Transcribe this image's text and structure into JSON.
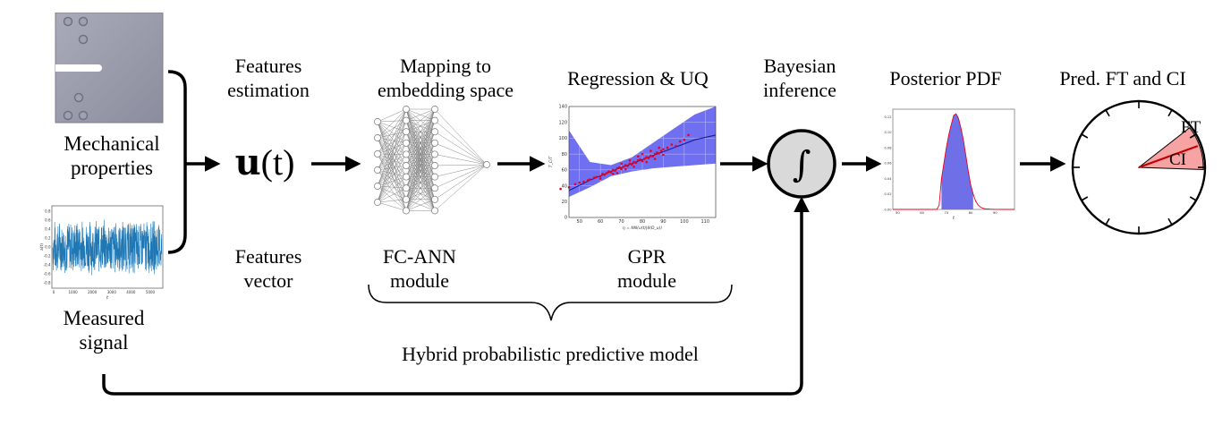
{
  "inputs": {
    "mech_label_1": "Mechanical",
    "mech_label_2": "properties",
    "signal_label_1": "Measured",
    "signal_label_2": "signal",
    "signal_ylabel": "a(t)",
    "signal_xlabel": "t",
    "signal_yticks": [
      "0.8",
      "0.6",
      "0.4",
      "0.2",
      "0.0",
      "-0.2",
      "-0.4",
      "-0.6",
      "-0.8"
    ],
    "signal_xticks": [
      "0",
      "1000",
      "2000",
      "3000",
      "4000",
      "5000"
    ]
  },
  "features": {
    "title_1": "Features",
    "title_2": "estimation",
    "vector_symbol": "u",
    "vector_arg": "(t)",
    "bottom_1": "Features",
    "bottom_2": "vector"
  },
  "ann": {
    "title_1": "Mapping to",
    "title_2": "embedding space",
    "bottom_1": "FC-ANN",
    "bottom_2": "module"
  },
  "gpr": {
    "title": "Regression & UQ",
    "bottom_1": "GPR",
    "bottom_2": "module",
    "ylabel": "T_C/T",
    "xlabel": "η = NN(u(t)|θ(D_u))",
    "chart_data": {
      "type": "scatter",
      "x_ticks": [
        50,
        60,
        70,
        80,
        90,
        100,
        110
      ],
      "y_ticks": [
        0,
        20,
        40,
        60,
        80,
        100,
        120,
        140
      ],
      "xlim": [
        45,
        115
      ],
      "ylim": [
        0,
        140
      ],
      "mean_line": {
        "x": [
          45,
          55,
          65,
          75,
          85,
          95,
          105,
          115
        ],
        "y": [
          34,
          47,
          58,
          68,
          78,
          88,
          98,
          104
        ]
      },
      "band_upper": {
        "x": [
          45,
          55,
          65,
          75,
          85,
          95,
          105,
          115
        ],
        "y": [
          110,
          70,
          66,
          76,
          94,
          112,
          130,
          140
        ]
      },
      "band_lower": {
        "x": [
          45,
          55,
          65,
          75,
          85,
          95,
          105,
          115
        ],
        "y": [
          26,
          38,
          52,
          58,
          62,
          64,
          66,
          68
        ]
      },
      "points": [
        [
          41,
          36
        ],
        [
          45,
          38
        ],
        [
          48,
          42
        ],
        [
          50,
          44
        ],
        [
          52,
          45
        ],
        [
          54,
          47
        ],
        [
          55,
          48
        ],
        [
          57,
          50
        ],
        [
          58,
          51
        ],
        [
          60,
          52
        ],
        [
          61,
          55
        ],
        [
          62,
          54
        ],
        [
          63,
          56
        ],
        [
          64,
          58
        ],
        [
          65,
          57
        ],
        [
          66,
          60
        ],
        [
          67,
          59
        ],
        [
          68,
          62
        ],
        [
          69,
          63
        ],
        [
          70,
          61
        ],
        [
          71,
          64
        ],
        [
          72,
          66
        ],
        [
          73,
          65
        ],
        [
          74,
          68
        ],
        [
          75,
          67
        ],
        [
          76,
          70
        ],
        [
          77,
          69
        ],
        [
          78,
          72
        ],
        [
          79,
          73
        ],
        [
          80,
          71
        ],
        [
          81,
          74
        ],
        [
          82,
          76
        ],
        [
          83,
          75
        ],
        [
          84,
          78
        ],
        [
          85,
          77
        ],
        [
          86,
          80
        ],
        [
          87,
          82
        ],
        [
          88,
          81
        ],
        [
          89,
          84
        ],
        [
          90,
          86
        ],
        [
          92,
          88
        ],
        [
          94,
          92
        ],
        [
          96,
          90
        ],
        [
          98,
          96
        ],
        [
          100,
          98
        ],
        [
          102,
          104
        ],
        [
          60,
          49
        ],
        [
          66,
          55
        ],
        [
          72,
          61
        ],
        [
          78,
          77
        ],
        [
          84,
          84
        ],
        [
          90,
          79
        ],
        [
          70,
          68
        ],
        [
          76,
          64
        ],
        [
          82,
          70
        ],
        [
          86,
          74
        ],
        [
          88,
          88
        ],
        [
          74,
          72
        ],
        [
          80,
          80
        ],
        [
          68,
          56
        ]
      ],
      "grid": true
    }
  },
  "bayes": {
    "title_1": "Bayesian",
    "title_2": "inference",
    "symbol": "∫"
  },
  "posterior": {
    "title": "Posterior PDF",
    "xlabel": "t",
    "chart_data": {
      "type": "area",
      "x_ticks": [
        50,
        60,
        70,
        80,
        90
      ],
      "y_ticks": [
        "0.00",
        "0.02",
        "0.04",
        "0.06",
        "0.08",
        "0.10",
        "0.12"
      ],
      "xlim": [
        48,
        98
      ],
      "ylim": [
        0,
        0.13
      ],
      "curve": {
        "x": [
          66,
          67,
          68,
          69,
          70,
          71,
          72,
          73,
          74,
          75,
          76,
          77,
          78,
          79,
          80,
          81,
          82,
          83,
          84,
          85,
          86,
          88,
          90,
          95
        ],
        "y": [
          0,
          0.005,
          0.04,
          0.06,
          0.08,
          0.097,
          0.11,
          0.122,
          0.124,
          0.118,
          0.105,
          0.09,
          0.07,
          0.05,
          0.032,
          0.02,
          0.011,
          0.006,
          0.003,
          0.0015,
          0.0008,
          0.0003,
          0.0001,
          0
        ]
      },
      "shaded_range": [
        68,
        81
      ]
    }
  },
  "prediction": {
    "title": "Pred. FT and CI",
    "ft_label": "FT",
    "ci_label": "CI"
  },
  "footer": {
    "hybrid_label": "Hybrid probabilistic predictive model"
  },
  "colors": {
    "gpr_band": "#6f6ff2",
    "signal": "#1f77b4",
    "points": "#e8001c",
    "pdf_fill": "#6f6fe8",
    "pdf_line": "#e8001c",
    "ci_fill": "#f8a3a3",
    "ft_line": "#c00000",
    "integral_fill": "#d9d9d9"
  }
}
